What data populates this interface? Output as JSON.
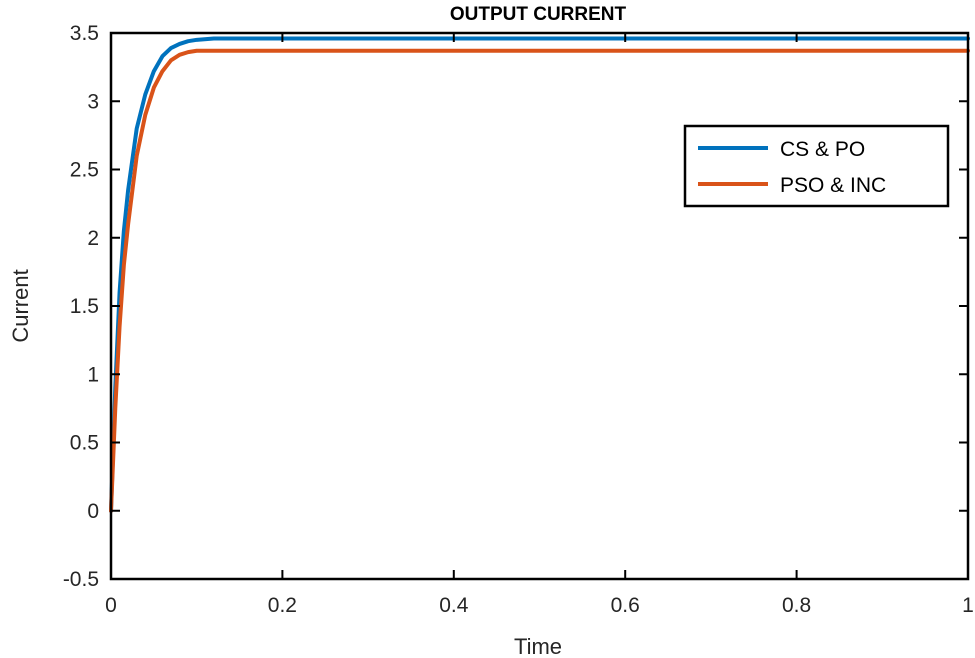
{
  "chart_data": {
    "type": "line",
    "title": "OUTPUT CURRENT",
    "xlabel": "Time",
    "ylabel": "Current",
    "xlim": [
      0,
      1
    ],
    "ylim": [
      -0.5,
      3.5
    ],
    "xticks": [
      0,
      0.2,
      0.4,
      0.6,
      0.8,
      1
    ],
    "xtick_labels": [
      "0",
      "0.2",
      "0.4",
      "0.6",
      "0.8",
      "1"
    ],
    "yticks": [
      -0.5,
      0,
      0.5,
      1,
      1.5,
      2,
      2.5,
      3,
      3.5
    ],
    "ytick_labels": [
      "-0.5",
      "0",
      "0.5",
      "1",
      "1.5",
      "2",
      "2.5",
      "3",
      "3.5"
    ],
    "grid": false,
    "legend_position": "upper-right",
    "series": [
      {
        "name": "CS & PO",
        "color": "#0072BD",
        "x": [
          0,
          0.005,
          0.01,
          0.015,
          0.02,
          0.03,
          0.04,
          0.05,
          0.06,
          0.07,
          0.08,
          0.09,
          0.1,
          0.12,
          0.15,
          0.2,
          0.3,
          0.4,
          0.5,
          0.6,
          0.7,
          0.8,
          0.9,
          1.0
        ],
        "y": [
          0,
          0.9,
          1.6,
          2.05,
          2.35,
          2.8,
          3.05,
          3.22,
          3.33,
          3.39,
          3.42,
          3.44,
          3.45,
          3.46,
          3.46,
          3.46,
          3.46,
          3.46,
          3.46,
          3.46,
          3.46,
          3.46,
          3.46,
          3.46
        ]
      },
      {
        "name": "PSO & INC",
        "color": "#D95319",
        "x": [
          0,
          0.005,
          0.01,
          0.015,
          0.02,
          0.03,
          0.04,
          0.05,
          0.06,
          0.07,
          0.08,
          0.09,
          0.1,
          0.12,
          0.15,
          0.2,
          0.3,
          0.4,
          0.5,
          0.6,
          0.7,
          0.8,
          0.9,
          1.0
        ],
        "y": [
          0,
          0.75,
          1.35,
          1.8,
          2.1,
          2.6,
          2.9,
          3.1,
          3.22,
          3.3,
          3.34,
          3.36,
          3.37,
          3.37,
          3.37,
          3.37,
          3.37,
          3.37,
          3.37,
          3.37,
          3.37,
          3.37,
          3.37,
          3.37
        ]
      }
    ]
  }
}
